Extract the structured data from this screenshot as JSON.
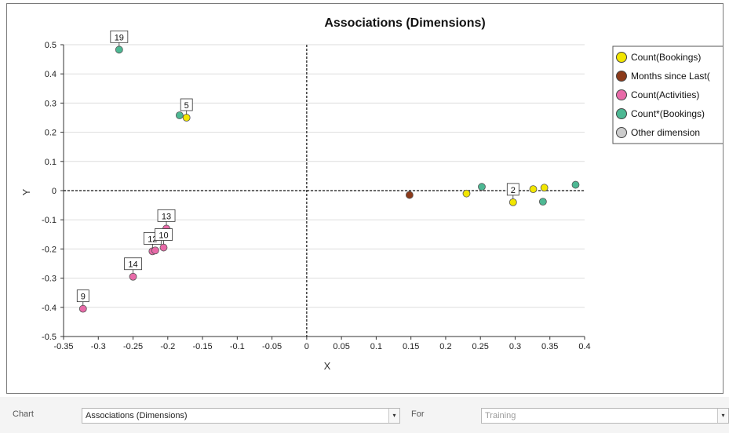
{
  "chart_data": {
    "type": "scatter",
    "title": "Associations (Dimensions)",
    "xlabel": "X",
    "ylabel": "Y",
    "xlim": [
      -0.35,
      0.4
    ],
    "ylim": [
      -0.5,
      0.5
    ],
    "xticks": [
      "-0.35",
      "-0.3",
      "-0.25",
      "-0.2",
      "-0.15",
      "-0.1",
      "-0.05",
      "0",
      "0.05",
      "0.1",
      "0.15",
      "0.2",
      "0.25",
      "0.3",
      "0.35",
      "0.4"
    ],
    "yticks": [
      "-0.5",
      "-0.4",
      "-0.3",
      "-0.2",
      "-0.1",
      "0",
      "0.1",
      "0.2",
      "0.3",
      "0.4",
      "0.5"
    ],
    "grid": true,
    "legend_position": "top-right",
    "series": [
      {
        "name": "Count(Bookings)",
        "color": "#f2e600",
        "points": [
          {
            "x": -0.173,
            "y": 0.25,
            "label": "5"
          },
          {
            "x": 0.23,
            "y": -0.01
          },
          {
            "x": 0.297,
            "y": -0.04,
            "label": "2"
          },
          {
            "x": 0.326,
            "y": 0.005
          },
          {
            "x": 0.342,
            "y": 0.01
          }
        ]
      },
      {
        "name": "Months since Last(",
        "color": "#8b3a1a",
        "points": [
          {
            "x": 0.148,
            "y": -0.015
          }
        ]
      },
      {
        "name": "Count(Activities)",
        "color": "#e86aa8",
        "points": [
          {
            "x": -0.322,
            "y": -0.405,
            "label": "9"
          },
          {
            "x": -0.25,
            "y": -0.295,
            "label": "14"
          },
          {
            "x": -0.222,
            "y": -0.208,
            "label": "12"
          },
          {
            "x": -0.218,
            "y": -0.205
          },
          {
            "x": -0.206,
            "y": -0.195,
            "label": "10"
          },
          {
            "x": -0.202,
            "y": -0.13,
            "label": "13"
          }
        ]
      },
      {
        "name": "Count*(Bookings)",
        "color": "#4db893",
        "points": [
          {
            "x": -0.27,
            "y": 0.483,
            "label": "19"
          },
          {
            "x": -0.183,
            "y": 0.258
          },
          {
            "x": 0.252,
            "y": 0.013
          },
          {
            "x": 0.34,
            "y": -0.038
          },
          {
            "x": 0.387,
            "y": 0.02
          }
        ]
      },
      {
        "name": "Other dimension",
        "color": "#cccccc",
        "points": []
      }
    ]
  },
  "controls": {
    "chart_label": "Chart",
    "chart_value": "Associations (Dimensions)",
    "for_label": "For",
    "for_value": "Training",
    "caret": "▾"
  }
}
